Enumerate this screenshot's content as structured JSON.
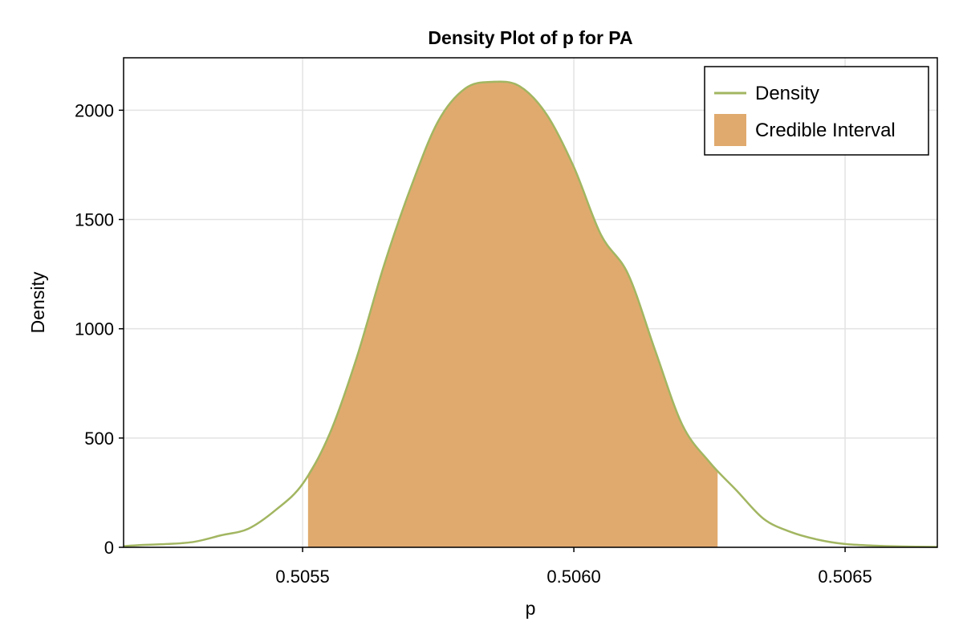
{
  "chart_data": {
    "type": "area",
    "title": "Density Plot of p for PA",
    "xlabel": "p",
    "ylabel": "Density",
    "xlim": [
      0.50517,
      0.50667
    ],
    "ylim": [
      0,
      2240
    ],
    "xticks": [
      0.5055,
      0.506,
      0.5065
    ],
    "xtick_labels": [
      "0.5055",
      "0.5060",
      "0.5065"
    ],
    "yticks": [
      0,
      500,
      1000,
      1500,
      2000
    ],
    "ytick_labels": [
      "0",
      "500",
      "1000",
      "1500",
      "2000"
    ],
    "grid": true,
    "legend_position": "top-right",
    "series": [
      {
        "name": "Density",
        "kind": "line",
        "color": "#a2b661",
        "x": [
          0.50517,
          0.5052,
          0.50525,
          0.5053,
          0.50535,
          0.5054,
          0.50545,
          0.5055,
          0.50555,
          0.5056,
          0.50565,
          0.5057,
          0.50575,
          0.5058,
          0.50585,
          0.5059,
          0.50595,
          0.506,
          0.50605,
          0.5061,
          0.50615,
          0.5062,
          0.50625,
          0.5063,
          0.50635,
          0.5064,
          0.50645,
          0.5065,
          0.50655,
          0.5066,
          0.50667
        ],
        "y": [
          5,
          10,
          15,
          25,
          55,
          85,
          170,
          290,
          520,
          870,
          1290,
          1650,
          1950,
          2100,
          2130,
          2110,
          1980,
          1740,
          1430,
          1250,
          900,
          560,
          390,
          260,
          130,
          70,
          35,
          15,
          8,
          4,
          2
        ]
      },
      {
        "name": "Credible Interval",
        "kind": "fill",
        "color": "#e0aa6e",
        "interval": [
          0.50551,
          0.506265
        ]
      }
    ]
  }
}
